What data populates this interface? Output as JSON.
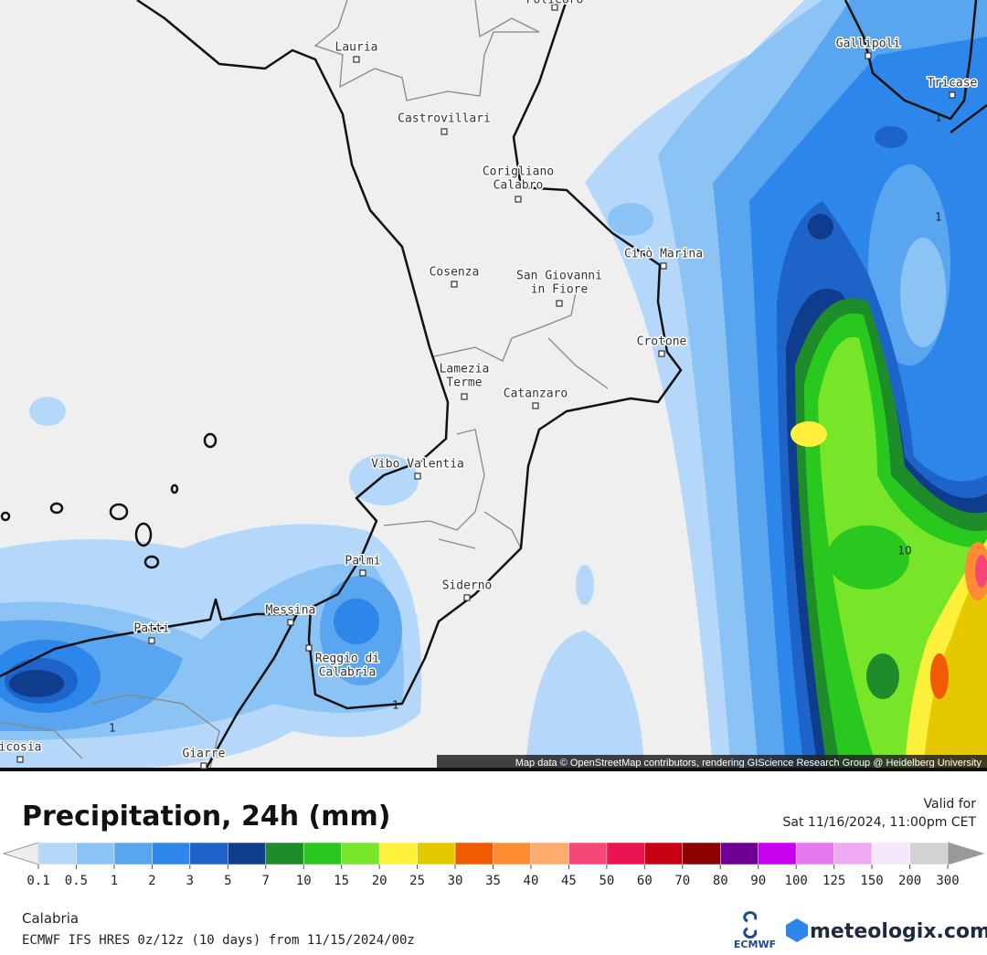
{
  "header": {
    "title": "Precipitation, 24h (mm)",
    "valid_label": "Valid for",
    "valid_time": "Sat 11/16/2024, 11:00pm CET"
  },
  "map": {
    "attribution": "Map data © OpenStreetMap contributors, rendering GIScience Research Group @ Heidelberg University",
    "cities": [
      {
        "lines": [
          "Policoro"
        ]
      },
      {
        "lines": [
          "Lauria"
        ]
      },
      {
        "lines": [
          "Castrovillari"
        ]
      },
      {
        "lines": [
          "Corigliano",
          "Calabro"
        ]
      },
      {
        "lines": [
          "Cosenza"
        ]
      },
      {
        "lines": [
          "San Giovanni",
          "in Fiore"
        ]
      },
      {
        "lines": [
          "Cirò Marina"
        ]
      },
      {
        "lines": [
          "Crotone"
        ]
      },
      {
        "lines": [
          "Lamezia",
          "Terme"
        ]
      },
      {
        "lines": [
          "Catanzaro"
        ]
      },
      {
        "lines": [
          "Vibo Valentia"
        ]
      },
      {
        "lines": [
          "Palmi"
        ]
      },
      {
        "lines": [
          "Siderno"
        ]
      },
      {
        "lines": [
          "Messina"
        ]
      },
      {
        "lines": [
          "Patti"
        ]
      },
      {
        "lines": [
          "Reggio di",
          "Calabria"
        ]
      },
      {
        "lines": [
          "Gallipoli"
        ]
      },
      {
        "lines": [
          "Tricase"
        ]
      },
      {
        "lines": [
          "Giarre"
        ]
      },
      {
        "lines": [
          "icosia"
        ]
      }
    ],
    "contour_labels": [
      "1",
      "1",
      "1",
      "1",
      "10"
    ]
  },
  "legend": {
    "ticks": [
      0.1,
      0.5,
      1,
      2,
      3,
      5,
      7,
      10,
      15,
      20,
      25,
      30,
      35,
      40,
      45,
      50,
      60,
      70,
      80,
      90,
      100,
      125,
      150,
      200,
      300
    ],
    "colors": [
      "#b4d7fa",
      "#8cc3f5",
      "#5aa5f0",
      "#2d87eb",
      "#1e64c8",
      "#0f3c8c",
      "#1e8c28",
      "#28c81e",
      "#78e628",
      "#fff03c",
      "#e6c800",
      "#f05a00",
      "#ff8c32",
      "#ffaa6e",
      "#f54678",
      "#eb1450",
      "#c80014",
      "#8c0000",
      "#6e0096",
      "#c800f0",
      "#e678f0",
      "#f0aaf5",
      "#f5e6fa",
      "#d2d2d2"
    ]
  },
  "footer": {
    "region": "Calabria",
    "model": "ECMWF IFS HRES 0z/12z (10 days) from 11/15/2024/00z",
    "ecmwf_logo": "ECMWF",
    "brand": "meteologix.com"
  }
}
